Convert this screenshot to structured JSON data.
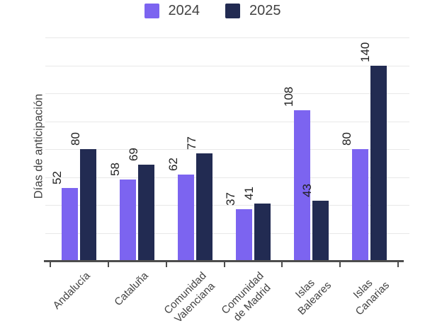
{
  "chart_data": {
    "type": "bar",
    "categories": [
      "Andalucía",
      "Cataluña",
      "Comunidad Valenciana",
      "Comunidad de Madrid",
      "Islas Baleares",
      "Islas Canarias"
    ],
    "category_label_lines": [
      [
        "Andalucía"
      ],
      [
        "Cataluña"
      ],
      [
        "Comunidad",
        "Valenciana"
      ],
      [
        "Comunidad",
        "de Madrid"
      ],
      [
        "Islas",
        "Baleares"
      ],
      [
        "Islas",
        "Canarias"
      ]
    ],
    "series": [
      {
        "name": "2024",
        "color": "#7c64f0",
        "values": [
          52,
          58,
          62,
          37,
          108,
          80
        ]
      },
      {
        "name": "2025",
        "color": "#222b52",
        "values": [
          80,
          69,
          77,
          41,
          43,
          140
        ]
      }
    ],
    "title": "",
    "xlabel": "",
    "ylabel": "Días de anticipación",
    "ylim": [
      0,
      160
    ],
    "grid_step": 20,
    "grid": true,
    "legend_position": "top-center",
    "value_labels_shown": true,
    "value_label_rotation_deg": 90,
    "x_tick_label_rotation_deg": 45
  },
  "colors": {
    "background": "#ffffff",
    "axis_line": "#4d4d4d",
    "gridline": "#e8e8e8",
    "value_label_text": "#212121",
    "axis_label_text": "#424242"
  }
}
